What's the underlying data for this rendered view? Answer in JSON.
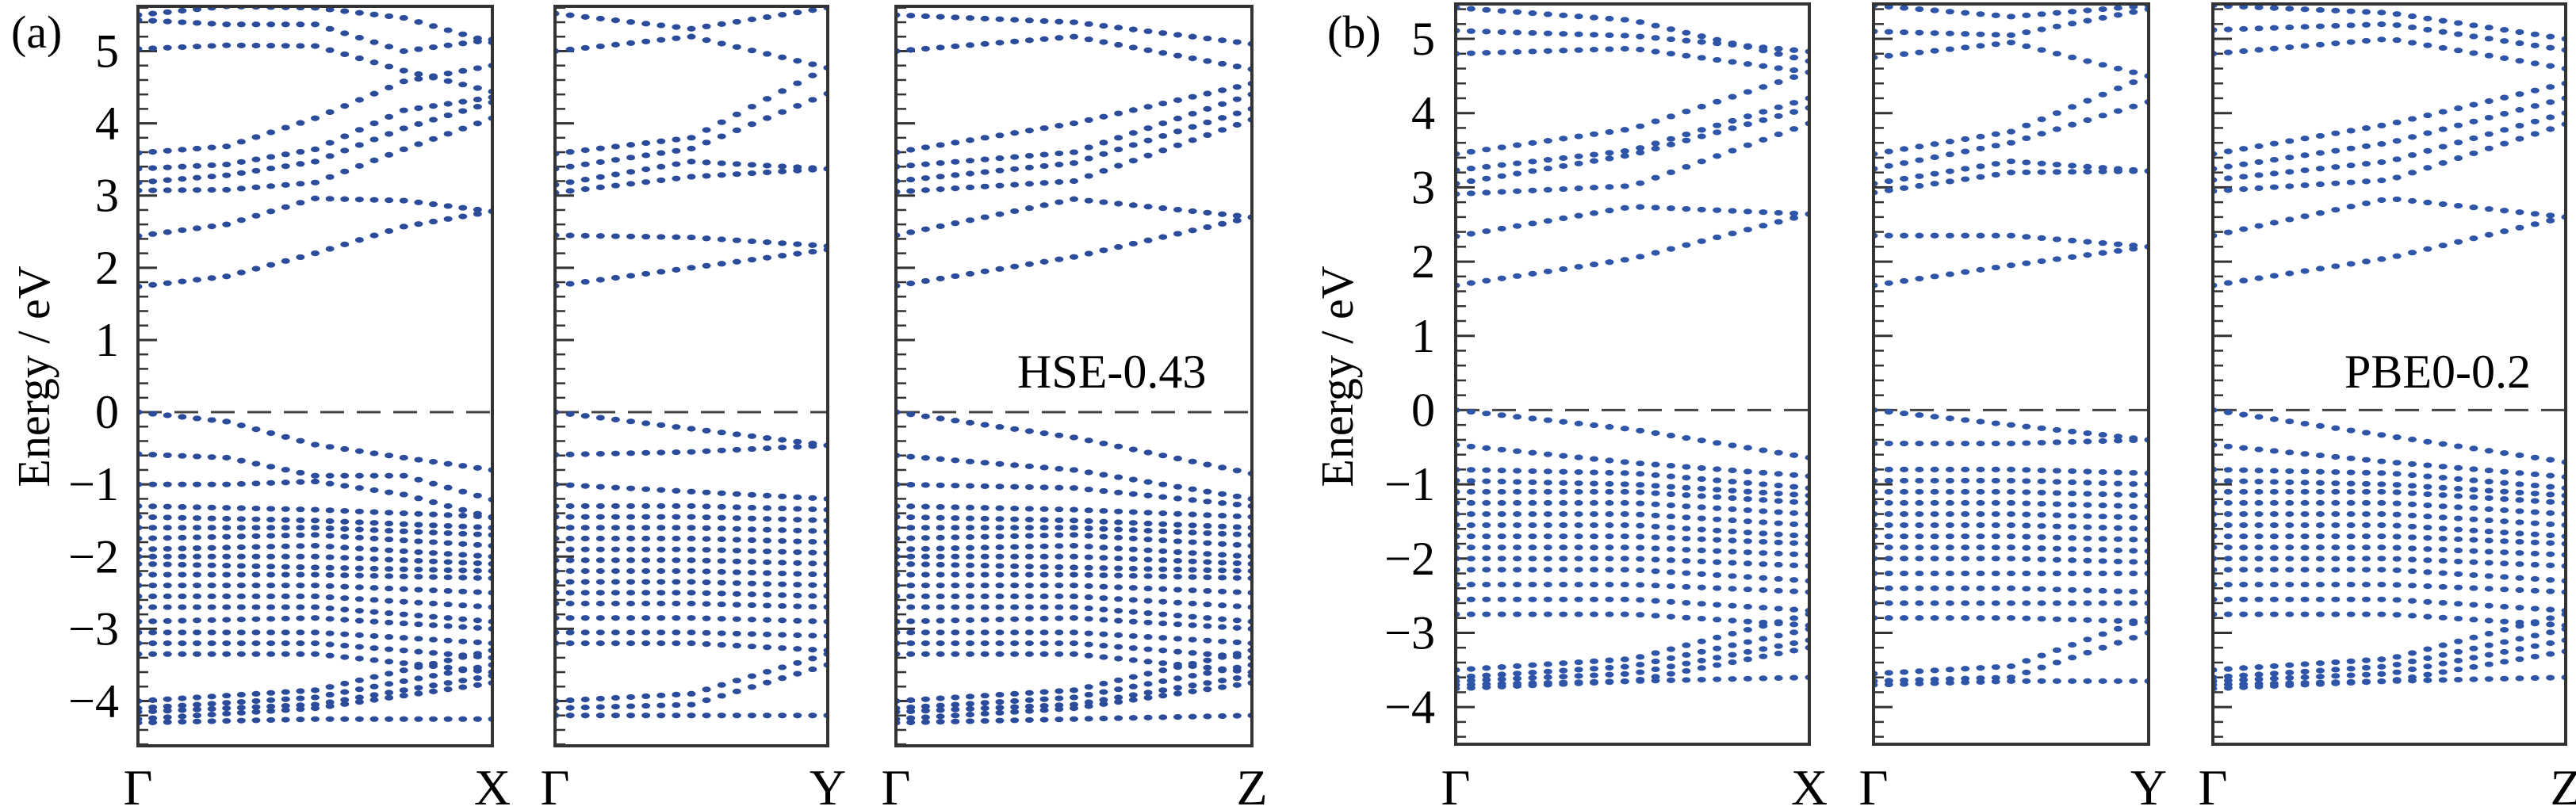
{
  "chart_data": [
    {
      "type": "scatter",
      "panel_label": "(a)",
      "ylabel": "Energy / eV",
      "yticks": [
        -4,
        -3,
        -2,
        -1,
        0,
        1,
        2,
        3,
        4,
        5
      ],
      "ytick_labels": [
        "−4",
        "−3",
        "−2",
        "−1",
        "0",
        "1",
        "2",
        "3",
        "4",
        "5"
      ],
      "ylim": [
        -4.62,
        5.62
      ],
      "minor_tick_step": 0.2,
      "fermi_level": 0,
      "marker_color": "#2b4c9b",
      "subplots": [
        {
          "path": [
            "Γ",
            "X"
          ],
          "annotation": "",
          "bands": [
            [
              1.74,
              1.88,
              2.2,
              2.57,
              2.78
            ],
            [
              2.44,
              2.6,
              2.96,
              2.93,
              2.78
            ],
            [
              3.07,
              3.08,
              3.18,
              3.64,
              4.07
            ],
            [
              3.18,
              3.28,
              3.47,
              3.93,
              4.29
            ],
            [
              3.37,
              3.43,
              3.64,
              4.18,
              4.36
            ],
            [
              3.59,
              3.68,
              4.07,
              4.58,
              4.8
            ],
            [
              5.03,
              5.08,
              5.07,
              4.73,
              4.44
            ],
            [
              5.43,
              5.37,
              5.37,
              5.0,
              5.16
            ],
            [
              5.5,
              5.62,
              5.6,
              5.46,
              5.12
            ],
            [
              0,
              -0.13,
              -0.45,
              -0.63,
              -0.8
            ],
            [
              -0.58,
              -0.63,
              -0.88,
              -0.88,
              -1.21
            ],
            [
              -1.0,
              -1.0,
              -0.96,
              -1.14,
              -1.46
            ],
            [
              -1.3,
              -1.35,
              -1.45
            ],
            [
              -1.45,
              -1.5,
              -1.6
            ],
            [
              -1.6,
              -1.6,
              -1.7
            ],
            [
              -1.75,
              -1.7,
              -1.85
            ],
            [
              -1.9,
              -1.85,
              -2.0
            ],
            [
              -2.0,
              -2.0,
              -2.1
            ],
            [
              -2.1,
              -2.15,
              -2.2
            ],
            [
              -2.25,
              -2.25,
              -2.3
            ],
            [
              -2.4,
              -2.4,
              -2.5
            ],
            [
              -2.55,
              -2.55,
              -2.7
            ],
            [
              -2.7,
              -2.7,
              -2.9
            ],
            [
              -2.9,
              -2.85,
              -3.0
            ],
            [
              -3.05,
              -3.05,
              -3.2
            ],
            [
              -3.2,
              -3.2,
              -3.4
            ],
            [
              -3.35,
              -3.35,
              -3.6
            ],
            [
              -4.0,
              -3.85,
              -3.3
            ],
            [
              -4.1,
              -3.95,
              -3.5
            ],
            [
              -4.15,
              -4.05,
              -3.65
            ],
            [
              -4.25,
              -4.1,
              -3.75
            ],
            [
              -4.3,
              -4.25,
              -4.25
            ]
          ]
        },
        {
          "path": [
            "Γ",
            "Y"
          ],
          "annotation": "",
          "bands": [
            [
              1.75,
              2.0,
              2.25
            ],
            [
              2.45,
              2.42,
              2.3
            ],
            [
              3.04,
              3.26,
              3.37
            ],
            [
              3.15,
              3.47,
              3.37
            ],
            [
              3.37,
              3.65,
              4.41
            ],
            [
              3.58,
              3.8,
              4.77
            ],
            [
              5.0,
              5.2,
              4.77
            ],
            [
              5.52,
              5.31,
              5.6
            ],
            [
              0,
              -0.23,
              -0.46
            ],
            [
              -0.59,
              -0.55,
              -0.46
            ],
            [
              -1.0,
              -1.1,
              -1.2
            ],
            [
              -1.3,
              -1.3,
              -1.35
            ],
            [
              -1.45,
              -1.45,
              -1.5
            ],
            [
              -1.6,
              -1.6,
              -1.65
            ],
            [
              -1.75,
              -1.75,
              -1.8
            ],
            [
              -1.9,
              -1.9,
              -1.95
            ],
            [
              -2.05,
              -2.05,
              -2.1
            ],
            [
              -2.2,
              -2.2,
              -2.25
            ],
            [
              -2.35,
              -2.35,
              -2.4
            ],
            [
              -2.5,
              -2.5,
              -2.55
            ],
            [
              -2.65,
              -2.65,
              -2.7
            ],
            [
              -2.85,
              -2.85,
              -2.9
            ],
            [
              -3.05,
              -3.05,
              -3.1
            ],
            [
              -3.2,
              -3.2,
              -3.3
            ],
            [
              -4.0,
              -3.9,
              -3.35
            ],
            [
              -4.1,
              -4.05,
              -3.5
            ],
            [
              -4.2,
              -4.2,
              -4.2
            ]
          ]
        },
        {
          "path": [
            "Γ",
            "Z"
          ],
          "annotation": "HSE-0.43",
          "bands": [
            [
              1.75,
              2.15,
              2.7
            ],
            [
              2.45,
              2.95,
              2.7
            ],
            [
              3.05,
              3.2,
              4.05
            ],
            [
              3.2,
              3.45,
              4.2
            ],
            [
              3.4,
              3.6,
              4.4
            ],
            [
              3.6,
              4.0,
              4.55
            ],
            [
              5.0,
              5.2,
              4.75
            ],
            [
              5.5,
              5.4,
              5.1
            ],
            [
              0,
              -0.35,
              -0.85
            ],
            [
              -0.6,
              -0.8,
              -1.2
            ],
            [
              -1.0,
              -1.05,
              -1.3
            ],
            [
              -1.3,
              -1.35,
              -1.45
            ],
            [
              -1.45,
              -1.5,
              -1.6
            ],
            [
              -1.6,
              -1.6,
              -1.7
            ],
            [
              -1.75,
              -1.7,
              -1.85
            ],
            [
              -1.9,
              -1.85,
              -2.0
            ],
            [
              -2.0,
              -2.0,
              -2.1
            ],
            [
              -2.1,
              -2.15,
              -2.2
            ],
            [
              -2.25,
              -2.25,
              -2.3
            ],
            [
              -2.4,
              -2.4,
              -2.5
            ],
            [
              -2.55,
              -2.55,
              -2.7
            ],
            [
              -2.7,
              -2.7,
              -2.9
            ],
            [
              -2.9,
              -2.85,
              -3.0
            ],
            [
              -3.05,
              -3.05,
              -3.2
            ],
            [
              -3.2,
              -3.2,
              -3.4
            ],
            [
              -3.35,
              -3.35,
              -3.6
            ],
            [
              -4.0,
              -3.85,
              -3.3
            ],
            [
              -4.1,
              -3.95,
              -3.5
            ],
            [
              -4.15,
              -4.05,
              -3.65
            ],
            [
              -4.25,
              -4.1,
              -3.75
            ],
            [
              -4.3,
              -4.25,
              -4.2
            ]
          ]
        }
      ]
    },
    {
      "type": "scatter",
      "panel_label": "(b)",
      "ylabel": "Energy / eV",
      "yticks": [
        -4,
        -3,
        -2,
        -1,
        0,
        1,
        2,
        3,
        4,
        5
      ],
      "ytick_labels": [
        "−4",
        "−3",
        "−2",
        "−1",
        "0",
        "1",
        "2",
        "3",
        "4",
        "5"
      ],
      "ylim": [
        -4.5,
        5.47
      ],
      "minor_tick_step": 0.2,
      "fermi_level": 0,
      "marker_color": "#2f55a8",
      "subplots": [
        {
          "path": [
            "Γ",
            "X"
          ],
          "annotation": "",
          "bands": [
            [
              1.68,
              2.04,
              2.64
            ],
            [
              2.34,
              2.74,
              2.64
            ],
            [
              2.91,
              3.02,
              3.86
            ],
            [
              3.05,
              3.44,
              4.07
            ],
            [
              3.23,
              3.5,
              4.2
            ],
            [
              3.45,
              3.79,
              4.55
            ],
            [
              4.8,
              4.87,
              4.55
            ],
            [
              5.11,
              5.04,
              4.83
            ],
            [
              5.42,
              5.25,
              4.7
            ],
            [
              0,
              -0.26,
              -0.64
            ],
            [
              -0.47,
              -0.71,
              -0.89
            ],
            [
              -0.8,
              -0.85,
              -1.05
            ],
            [
              -0.95,
              -1.0,
              -1.15
            ],
            [
              -1.1,
              -1.1,
              -1.25
            ],
            [
              -1.25,
              -1.25,
              -1.4
            ],
            [
              -1.4,
              -1.4,
              -1.55
            ],
            [
              -1.55,
              -1.55,
              -1.7
            ],
            [
              -1.7,
              -1.7,
              -1.8
            ],
            [
              -1.85,
              -1.85,
              -1.95
            ],
            [
              -2.0,
              -2.0,
              -2.1
            ],
            [
              -2.15,
              -2.15,
              -2.3
            ],
            [
              -2.35,
              -2.35,
              -2.45
            ],
            [
              -2.55,
              -2.55,
              -2.7
            ],
            [
              -2.75,
              -2.75,
              -2.9
            ],
            [
              -3.5,
              -3.35,
              -2.75
            ],
            [
              -3.6,
              -3.45,
              -2.95
            ],
            [
              -3.65,
              -3.55,
              -3.1
            ],
            [
              -3.75,
              -3.65,
              -3.2
            ],
            [
              -3.7,
              -3.65,
              -3.6
            ]
          ]
        },
        {
          "path": [
            "Γ",
            "Y"
          ],
          "annotation": "",
          "bands": [
            [
              1.68,
              1.95,
              2.2
            ],
            [
              2.35,
              2.35,
              2.2
            ],
            [
              2.93,
              3.2,
              3.22
            ],
            [
              3.05,
              3.35,
              3.22
            ],
            [
              3.25,
              3.6,
              4.15
            ],
            [
              3.45,
              3.75,
              4.5
            ],
            [
              4.75,
              4.95,
              4.5
            ],
            [
              5.1,
              5.05,
              5.4
            ],
            [
              5.45,
              5.3,
              5.45
            ],
            [
              0,
              -0.2,
              -0.4
            ],
            [
              -0.45,
              -0.45,
              -0.4
            ],
            [
              -0.8,
              -0.8,
              -0.85
            ],
            [
              -0.95,
              -0.95,
              -1.0
            ],
            [
              -1.1,
              -1.1,
              -1.15
            ],
            [
              -1.25,
              -1.25,
              -1.3
            ],
            [
              -1.4,
              -1.4,
              -1.45
            ],
            [
              -1.55,
              -1.55,
              -1.6
            ],
            [
              -1.7,
              -1.7,
              -1.75
            ],
            [
              -1.85,
              -1.85,
              -1.9
            ],
            [
              -2.0,
              -2.0,
              -2.05
            ],
            [
              -2.2,
              -2.2,
              -2.2
            ],
            [
              -2.4,
              -2.4,
              -2.45
            ],
            [
              -2.6,
              -2.6,
              -2.6
            ],
            [
              -2.8,
              -2.8,
              -2.85
            ],
            [
              -3.55,
              -3.45,
              -2.8
            ],
            [
              -3.65,
              -3.6,
              -3.0
            ],
            [
              -3.7,
              -3.65,
              -3.65
            ]
          ]
        },
        {
          "path": [
            "Γ",
            "Z"
          ],
          "annotation": "PBE0-0.2",
          "bands": [
            [
              1.68,
              2.05,
              2.6
            ],
            [
              2.35,
              2.85,
              2.6
            ],
            [
              2.95,
              3.1,
              3.85
            ],
            [
              3.1,
              3.35,
              4.0
            ],
            [
              3.25,
              3.6,
              4.2
            ],
            [
              3.45,
              3.85,
              4.4
            ],
            [
              4.8,
              5.0,
              4.6
            ],
            [
              5.12,
              5.2,
              4.85
            ],
            [
              5.45,
              5.35,
              5.0
            ],
            [
              0,
              -0.35,
              -0.7
            ],
            [
              -0.47,
              -0.7,
              -0.9
            ],
            [
              -0.8,
              -0.85,
              -1.05
            ],
            [
              -0.95,
              -1.0,
              -1.15
            ],
            [
              -1.1,
              -1.1,
              -1.25
            ],
            [
              -1.25,
              -1.25,
              -1.4
            ],
            [
              -1.4,
              -1.4,
              -1.55
            ],
            [
              -1.55,
              -1.55,
              -1.7
            ],
            [
              -1.7,
              -1.7,
              -1.8
            ],
            [
              -1.85,
              -1.85,
              -1.95
            ],
            [
              -2.0,
              -2.0,
              -2.1
            ],
            [
              -2.15,
              -2.15,
              -2.3
            ],
            [
              -2.35,
              -2.35,
              -2.45
            ],
            [
              -2.55,
              -2.55,
              -2.7
            ],
            [
              -2.75,
              -2.75,
              -2.9
            ],
            [
              -3.5,
              -3.35,
              -2.75
            ],
            [
              -3.6,
              -3.45,
              -2.95
            ],
            [
              -3.65,
              -3.55,
              -3.1
            ],
            [
              -3.75,
              -3.65,
              -3.25
            ],
            [
              -3.7,
              -3.65,
              -3.6
            ]
          ]
        }
      ]
    }
  ]
}
